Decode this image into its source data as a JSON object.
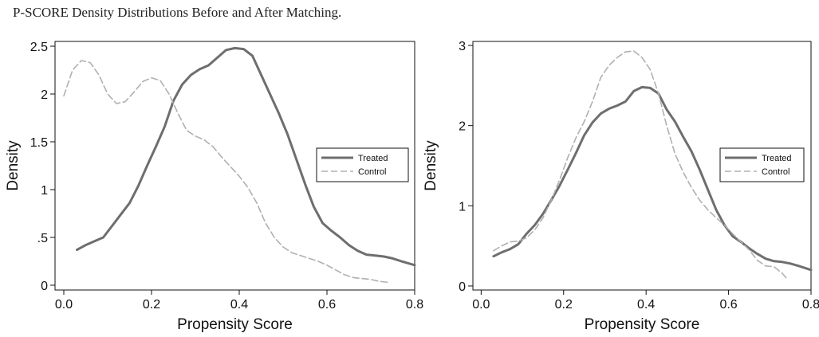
{
  "caption": "P-SCORE Density Distributions Before and After Matching.",
  "chart_data": [
    {
      "type": "line",
      "title": "",
      "xlabel": "Propensity Score",
      "ylabel": "Density",
      "xlim": [
        -0.02,
        0.8
      ],
      "ylim": [
        -0.05,
        2.55
      ],
      "xticks": [
        0.0,
        0.2,
        0.4,
        0.6,
        0.8
      ],
      "xtick_labels": [
        "0.0",
        "0.2",
        "0.4",
        "0.6",
        "0.8"
      ],
      "yticks": [
        0,
        0.5,
        1,
        1.5,
        2,
        2.5
      ],
      "ytick_labels": [
        "0",
        ".5",
        "1",
        "1.5",
        "2",
        "2.5"
      ],
      "legend_position": "right-middle",
      "grid": false,
      "series": [
        {
          "name": "Treated",
          "color": "#6e6e6e",
          "dash": "solid",
          "points": [
            [
              0.03,
              0.37
            ],
            [
              0.05,
              0.42
            ],
            [
              0.07,
              0.46
            ],
            [
              0.09,
              0.5
            ],
            [
              0.11,
              0.62
            ],
            [
              0.13,
              0.74
            ],
            [
              0.15,
              0.86
            ],
            [
              0.17,
              1.04
            ],
            [
              0.19,
              1.25
            ],
            [
              0.21,
              1.45
            ],
            [
              0.23,
              1.66
            ],
            [
              0.25,
              1.93
            ],
            [
              0.27,
              2.1
            ],
            [
              0.29,
              2.2
            ],
            [
              0.31,
              2.26
            ],
            [
              0.33,
              2.3
            ],
            [
              0.35,
              2.38
            ],
            [
              0.37,
              2.46
            ],
            [
              0.39,
              2.48
            ],
            [
              0.41,
              2.47
            ],
            [
              0.43,
              2.4
            ],
            [
              0.45,
              2.2
            ],
            [
              0.47,
              2.0
            ],
            [
              0.49,
              1.8
            ],
            [
              0.51,
              1.58
            ],
            [
              0.53,
              1.32
            ],
            [
              0.55,
              1.06
            ],
            [
              0.57,
              0.82
            ],
            [
              0.59,
              0.65
            ],
            [
              0.61,
              0.57
            ],
            [
              0.63,
              0.5
            ],
            [
              0.65,
              0.42
            ],
            [
              0.67,
              0.36
            ],
            [
              0.69,
              0.32
            ],
            [
              0.71,
              0.31
            ],
            [
              0.73,
              0.3
            ],
            [
              0.75,
              0.28
            ],
            [
              0.77,
              0.25
            ],
            [
              0.8,
              0.21
            ]
          ]
        },
        {
          "name": "Control",
          "color": "#b0b0b0",
          "dash": "dashed",
          "points": [
            [
              0.0,
              1.98
            ],
            [
              0.02,
              2.25
            ],
            [
              0.04,
              2.35
            ],
            [
              0.06,
              2.33
            ],
            [
              0.08,
              2.2
            ],
            [
              0.1,
              2.0
            ],
            [
              0.12,
              1.9
            ],
            [
              0.14,
              1.92
            ],
            [
              0.16,
              2.02
            ],
            [
              0.18,
              2.13
            ],
            [
              0.2,
              2.17
            ],
            [
              0.22,
              2.14
            ],
            [
              0.24,
              2.0
            ],
            [
              0.26,
              1.8
            ],
            [
              0.28,
              1.62
            ],
            [
              0.3,
              1.56
            ],
            [
              0.32,
              1.52
            ],
            [
              0.34,
              1.45
            ],
            [
              0.36,
              1.34
            ],
            [
              0.38,
              1.24
            ],
            [
              0.4,
              1.14
            ],
            [
              0.42,
              1.02
            ],
            [
              0.44,
              0.86
            ],
            [
              0.46,
              0.65
            ],
            [
              0.48,
              0.5
            ],
            [
              0.5,
              0.4
            ],
            [
              0.52,
              0.34
            ],
            [
              0.54,
              0.31
            ],
            [
              0.56,
              0.28
            ],
            [
              0.58,
              0.25
            ],
            [
              0.6,
              0.21
            ],
            [
              0.62,
              0.16
            ],
            [
              0.64,
              0.11
            ],
            [
              0.66,
              0.08
            ],
            [
              0.68,
              0.07
            ],
            [
              0.7,
              0.06
            ],
            [
              0.72,
              0.04
            ],
            [
              0.74,
              0.03
            ]
          ]
        }
      ]
    },
    {
      "type": "line",
      "title": "",
      "xlabel": "Propensity Score",
      "ylabel": "Density",
      "xlim": [
        -0.02,
        0.8
      ],
      "ylim": [
        -0.05,
        3.05
      ],
      "xticks": [
        0.0,
        0.2,
        0.4,
        0.6,
        0.8
      ],
      "xtick_labels": [
        "0.0",
        "0.2",
        "0.4",
        "0.6",
        "0.8"
      ],
      "yticks": [
        0,
        1,
        2,
        3
      ],
      "ytick_labels": [
        "0",
        "1",
        "2",
        "3"
      ],
      "legend_position": "right-middle",
      "grid": false,
      "series": [
        {
          "name": "Treated",
          "color": "#6e6e6e",
          "dash": "solid",
          "points": [
            [
              0.03,
              0.37
            ],
            [
              0.05,
              0.42
            ],
            [
              0.07,
              0.46
            ],
            [
              0.09,
              0.52
            ],
            [
              0.11,
              0.65
            ],
            [
              0.13,
              0.76
            ],
            [
              0.15,
              0.9
            ],
            [
              0.17,
              1.07
            ],
            [
              0.19,
              1.25
            ],
            [
              0.21,
              1.45
            ],
            [
              0.23,
              1.66
            ],
            [
              0.25,
              1.88
            ],
            [
              0.27,
              2.04
            ],
            [
              0.29,
              2.15
            ],
            [
              0.31,
              2.21
            ],
            [
              0.33,
              2.25
            ],
            [
              0.35,
              2.3
            ],
            [
              0.37,
              2.43
            ],
            [
              0.39,
              2.48
            ],
            [
              0.41,
              2.47
            ],
            [
              0.43,
              2.4
            ],
            [
              0.45,
              2.2
            ],
            [
              0.47,
              2.05
            ],
            [
              0.49,
              1.86
            ],
            [
              0.51,
              1.68
            ],
            [
              0.53,
              1.45
            ],
            [
              0.55,
              1.2
            ],
            [
              0.57,
              0.95
            ],
            [
              0.59,
              0.76
            ],
            [
              0.61,
              0.62
            ],
            [
              0.63,
              0.55
            ],
            [
              0.65,
              0.47
            ],
            [
              0.67,
              0.4
            ],
            [
              0.69,
              0.34
            ],
            [
              0.71,
              0.31
            ],
            [
              0.73,
              0.3
            ],
            [
              0.75,
              0.28
            ],
            [
              0.77,
              0.25
            ],
            [
              0.8,
              0.2
            ]
          ]
        },
        {
          "name": "Control",
          "color": "#b0b0b0",
          "dash": "dashed",
          "points": [
            [
              0.03,
              0.44
            ],
            [
              0.05,
              0.5
            ],
            [
              0.07,
              0.55
            ],
            [
              0.09,
              0.56
            ],
            [
              0.11,
              0.6
            ],
            [
              0.13,
              0.7
            ],
            [
              0.15,
              0.85
            ],
            [
              0.17,
              1.07
            ],
            [
              0.19,
              1.32
            ],
            [
              0.21,
              1.6
            ],
            [
              0.23,
              1.85
            ],
            [
              0.25,
              2.05
            ],
            [
              0.27,
              2.3
            ],
            [
              0.29,
              2.6
            ],
            [
              0.31,
              2.75
            ],
            [
              0.33,
              2.85
            ],
            [
              0.35,
              2.92
            ],
            [
              0.37,
              2.93
            ],
            [
              0.39,
              2.85
            ],
            [
              0.41,
              2.7
            ],
            [
              0.43,
              2.4
            ],
            [
              0.45,
              2.0
            ],
            [
              0.47,
              1.65
            ],
            [
              0.49,
              1.42
            ],
            [
              0.51,
              1.23
            ],
            [
              0.53,
              1.07
            ],
            [
              0.55,
              0.95
            ],
            [
              0.57,
              0.85
            ],
            [
              0.59,
              0.76
            ],
            [
              0.61,
              0.65
            ],
            [
              0.63,
              0.55
            ],
            [
              0.65,
              0.45
            ],
            [
              0.67,
              0.32
            ],
            [
              0.69,
              0.25
            ],
            [
              0.71,
              0.24
            ],
            [
              0.73,
              0.16
            ],
            [
              0.74,
              0.1
            ]
          ]
        }
      ]
    }
  ]
}
